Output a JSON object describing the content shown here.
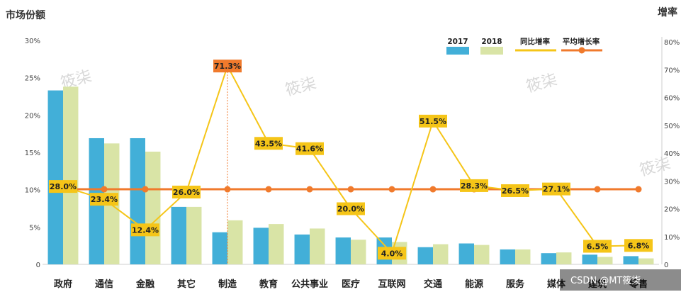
{
  "chart_data": {
    "type": "bar+line",
    "y_left_title": "市场份额",
    "y_right_title": "增率",
    "y_left_ticks": [
      "0",
      "5%",
      "10%",
      "15%",
      "20%",
      "25%",
      "30%"
    ],
    "y_right_ticks": [
      "0",
      "10%",
      "20%",
      "30%",
      "40%",
      "50%",
      "60%",
      "70%",
      "80%"
    ],
    "ylim_left": [
      0,
      30
    ],
    "ylim_right": [
      0,
      80
    ],
    "categories": [
      "政府",
      "通信",
      "金融",
      "其它",
      "制造",
      "教育",
      "公共事业",
      "医疗",
      "互联网",
      "交通",
      "能源",
      "服务",
      "媒体",
      "建筑",
      "零售"
    ],
    "highlight_category": "制造",
    "highlight_color": "#f07a2c",
    "series": [
      {
        "name": "2017",
        "kind": "bar",
        "axis": "left",
        "color": "#42afd8",
        "values": [
          23.3,
          16.9,
          16.9,
          7.7,
          4.3,
          4.9,
          4.0,
          3.6,
          3.6,
          2.3,
          2.8,
          2.0,
          1.5,
          1.3,
          1.1
        ]
      },
      {
        "name": "2018",
        "kind": "bar",
        "axis": "left",
        "color": "#d9e4a6",
        "values": [
          23.8,
          16.2,
          15.1,
          7.7,
          5.9,
          5.4,
          4.8,
          3.3,
          3.0,
          2.7,
          2.6,
          2.0,
          1.6,
          1.0,
          0.8
        ]
      },
      {
        "name": "同比增率",
        "kind": "line",
        "axis": "right",
        "color": "#f5c518",
        "values": [
          28.0,
          23.4,
          12.4,
          26.0,
          71.3,
          43.5,
          41.6,
          20.0,
          4.0,
          51.5,
          28.3,
          26.5,
          27.1,
          6.5,
          6.8
        ],
        "labels": [
          "28.0%",
          "23.4%",
          "12.4%",
          "26.0%",
          "71.3%",
          "43.5%",
          "41.6%",
          "20.0%",
          "4.0%",
          "51.5%",
          "28.3%",
          "26.5%",
          "27.1%",
          "6.5%",
          "6.8%"
        ]
      },
      {
        "name": "平均增长率",
        "kind": "line",
        "axis": "right",
        "color": "#f07a2c",
        "values": [
          27.0,
          27.0,
          27.0,
          27.0,
          27.0,
          27.0,
          27.0,
          27.0,
          27.0,
          27.0,
          27.0,
          27.0,
          27.0,
          27.0,
          27.0
        ]
      }
    ],
    "legend_position": "top-right",
    "grid": false
  },
  "watermarks": [
    "筱柒",
    "筱柒",
    "筱柒",
    "筱柒"
  ],
  "credit": "CSDN @MT筱柒"
}
